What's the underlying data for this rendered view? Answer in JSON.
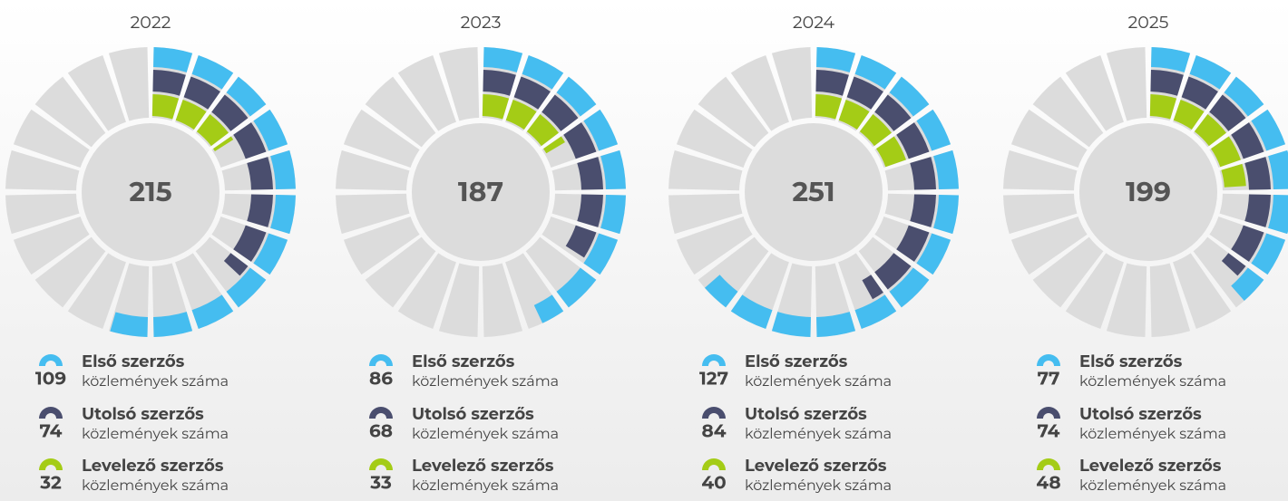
{
  "chart_data": [
    {
      "type": "radial",
      "title": "2022",
      "total": 215,
      "series": [
        {
          "name": "Első szerzős",
          "description": "közlemények száma",
          "color": "#45bdf0",
          "values": [
            109
          ]
        },
        {
          "name": "Utolsó szerzős",
          "description": "közlemények száma",
          "color": "#4a4e6e",
          "values": [
            74
          ]
        },
        {
          "name": "Levelező szerzős",
          "description": "közlemények száma",
          "color": "#a4cc16",
          "values": [
            32
          ]
        }
      ]
    },
    {
      "type": "radial",
      "title": "2023",
      "total": 187,
      "series": [
        {
          "name": "Első szerzős",
          "description": "közlemények száma",
          "color": "#45bdf0",
          "values": [
            86
          ]
        },
        {
          "name": "Utolsó szerzős",
          "description": "közlemények száma",
          "color": "#4a4e6e",
          "values": [
            68
          ]
        },
        {
          "name": "Levelező szerzős",
          "description": "közlemények száma",
          "color": "#a4cc16",
          "values": [
            33
          ]
        }
      ]
    },
    {
      "type": "radial",
      "title": "2024",
      "total": 251,
      "series": [
        {
          "name": "Első szerzős",
          "description": "közlemények száma",
          "color": "#45bdf0",
          "values": [
            127
          ]
        },
        {
          "name": "Utolsó szerzős",
          "description": "közlemények száma",
          "color": "#4a4e6e",
          "values": [
            84
          ]
        },
        {
          "name": "Levelező szerzős",
          "description": "közlemények száma",
          "color": "#a4cc16",
          "values": [
            40
          ]
        }
      ]
    },
    {
      "type": "radial",
      "title": "2025",
      "total": 199,
      "series": [
        {
          "name": "Első szerzős",
          "description": "közlemények száma",
          "color": "#45bdf0",
          "values": [
            77
          ]
        },
        {
          "name": "Utolsó szerzős",
          "description": "közlemények száma",
          "color": "#4a4e6e",
          "values": [
            74
          ]
        },
        {
          "name": "Levelező szerzős",
          "description": "közlemények száma",
          "color": "#a4cc16",
          "values": [
            48
          ]
        }
      ]
    }
  ]
}
